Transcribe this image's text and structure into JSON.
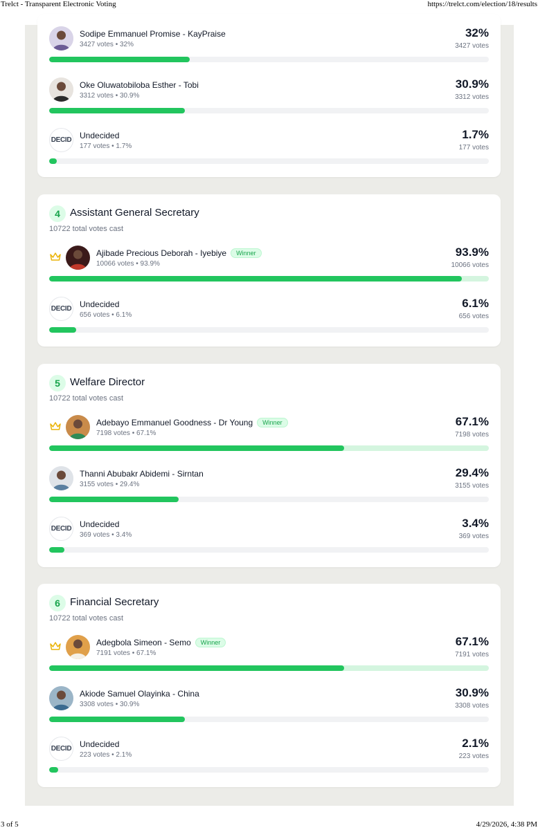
{
  "print_header": {
    "title": "Trelct - Transparent Electronic Voting",
    "url": "https://trelct.com/election/18/results"
  },
  "print_footer": {
    "page": "3 of 5",
    "datetime": "4/29/2026, 4:38 PM"
  },
  "colors": {
    "accent": "#22c55e",
    "winner_track": "#d4f5df",
    "track": "#f1f2f4",
    "badge_bg": "#dcfce7",
    "badge_text": "#16a34a"
  },
  "positions": [
    {
      "number": "",
      "title": "",
      "total": "",
      "candidates": [
        {
          "name": "Sodipe Emmanuel Promise - KayPraise",
          "meta": "3427 votes • 32%",
          "percent": "32%",
          "votes": "3427 votes",
          "fraction": 0.32,
          "winner": false,
          "undecided": false
        },
        {
          "name": "Oke Oluwatobiloba Esther - Tobi",
          "meta": "3312 votes • 30.9%",
          "percent": "30.9%",
          "votes": "3312 votes",
          "fraction": 0.309,
          "winner": false,
          "undecided": false
        },
        {
          "name": "Undecided",
          "meta": "177 votes • 1.7%",
          "percent": "1.7%",
          "votes": "177 votes",
          "fraction": 0.017,
          "winner": false,
          "undecided": true
        }
      ]
    },
    {
      "number": "4",
      "title": "Assistant General Secretary",
      "total": "10722 total votes cast",
      "candidates": [
        {
          "name": "Ajibade Precious Deborah - Iyebiye",
          "meta": "10066 votes • 93.9%",
          "percent": "93.9%",
          "votes": "10066 votes",
          "fraction": 0.939,
          "winner": true,
          "undecided": false
        },
        {
          "name": "Undecided",
          "meta": "656 votes • 6.1%",
          "percent": "6.1%",
          "votes": "656 votes",
          "fraction": 0.061,
          "winner": false,
          "undecided": true
        }
      ]
    },
    {
      "number": "5",
      "title": "Welfare Director",
      "total": "10722 total votes cast",
      "candidates": [
        {
          "name": "Adebayo Emmanuel Goodness - Dr Young",
          "meta": "7198 votes • 67.1%",
          "percent": "67.1%",
          "votes": "7198 votes",
          "fraction": 0.671,
          "winner": true,
          "undecided": false
        },
        {
          "name": "Thanni Abubakr Abidemi - Sirntan",
          "meta": "3155 votes • 29.4%",
          "percent": "29.4%",
          "votes": "3155 votes",
          "fraction": 0.294,
          "winner": false,
          "undecided": false
        },
        {
          "name": "Undecided",
          "meta": "369 votes • 3.4%",
          "percent": "3.4%",
          "votes": "369 votes",
          "fraction": 0.034,
          "winner": false,
          "undecided": true
        }
      ]
    },
    {
      "number": "6",
      "title": "Financial Secretary",
      "total": "10722 total votes cast",
      "candidates": [
        {
          "name": "Adegbola Simeon - Semo",
          "meta": "7191 votes • 67.1%",
          "percent": "67.1%",
          "votes": "7191 votes",
          "fraction": 0.671,
          "winner": true,
          "undecided": false
        },
        {
          "name": "Akiode Samuel Olayinka - China",
          "meta": "3308 votes • 30.9%",
          "percent": "30.9%",
          "votes": "3308 votes",
          "fraction": 0.309,
          "winner": false,
          "undecided": false
        },
        {
          "name": "Undecided",
          "meta": "223 votes • 2.1%",
          "percent": "2.1%",
          "votes": "223 votes",
          "fraction": 0.021,
          "winner": false,
          "undecided": true
        }
      ]
    }
  ],
  "labels": {
    "winner": "Winner",
    "undecided_logo": "DECID"
  }
}
